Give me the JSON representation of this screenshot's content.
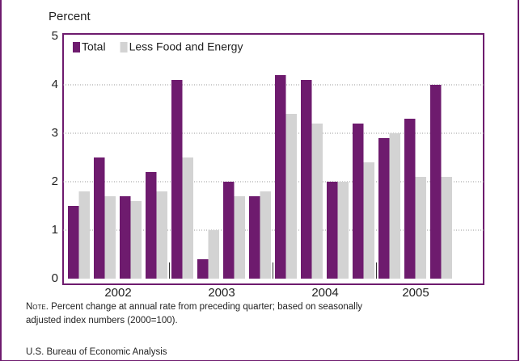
{
  "chart_data": {
    "type": "bar",
    "y_axis_label": "Percent",
    "categories": [
      null,
      null,
      null,
      null,
      null,
      null,
      null,
      null,
      null,
      null,
      null,
      null,
      null,
      null,
      null
    ],
    "groups": [
      {
        "label": "2002",
        "count": 4
      },
      {
        "label": "2003",
        "count": 4
      },
      {
        "label": "2004",
        "count": 4
      },
      {
        "label": "2005",
        "count": 3
      }
    ],
    "series": [
      {
        "name": "Total",
        "color": "#6e1b6e",
        "values": [
          1.5,
          2.5,
          1.7,
          2.2,
          4.1,
          0.4,
          2.0,
          1.7,
          4.2,
          4.1,
          2.0,
          3.2,
          2.9,
          3.3,
          4.0
        ]
      },
      {
        "name": "Less Food and Energy",
        "color": "#d3d3d3",
        "values": [
          1.8,
          1.7,
          1.6,
          1.8,
          2.5,
          1.0,
          1.7,
          1.8,
          3.4,
          3.2,
          2.0,
          2.4,
          3.0,
          2.1,
          2.1
        ]
      }
    ],
    "ylim": [
      0,
      5
    ],
    "yticks": [
      0,
      1,
      2,
      3,
      4,
      5
    ],
    "grid": true,
    "legend": "top-left",
    "note_label": "Note.",
    "note": "Percent change at annual rate from preceding quarter; based on seasonally adjusted index numbers (2000=100).",
    "source": "U.S. Bureau of Economic Analysis"
  }
}
